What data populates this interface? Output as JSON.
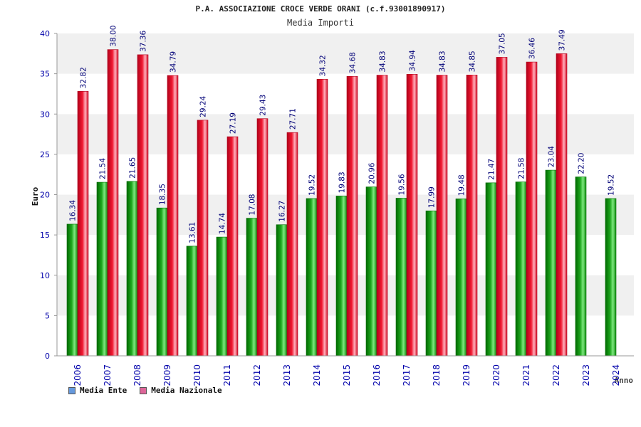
{
  "chart_data": {
    "type": "bar",
    "title": "P.A. ASSOCIAZIONE CROCE VERDE ORANI (c.f.93001890917)",
    "subtitle": "Media Importi",
    "xlabel": "Anno",
    "ylabel": "Euro",
    "ylim": [
      0,
      40
    ],
    "yticks": [
      0,
      5,
      10,
      15,
      20,
      25,
      30,
      35,
      40
    ],
    "categories": [
      "2006",
      "2007",
      "2008",
      "2009",
      "2010",
      "2011",
      "2012",
      "2013",
      "2014",
      "2015",
      "2016",
      "2017",
      "2018",
      "2019",
      "2020",
      "2021",
      "2022",
      "2023",
      "2024"
    ],
    "series": [
      {
        "name": "Media Ente",
        "values": [
          16.34,
          21.54,
          21.65,
          18.35,
          13.61,
          14.74,
          17.08,
          16.27,
          19.52,
          19.83,
          20.96,
          19.56,
          17.99,
          19.48,
          21.47,
          21.58,
          23.04,
          22.2,
          19.52
        ],
        "labels": [
          "16.34",
          "21.54",
          "21.65",
          "18.35",
          "13.61",
          "14.74",
          "17.08",
          "16.27",
          "19.52",
          "19.83",
          "20.96",
          "19.56",
          "17.99",
          "19.48",
          "21.47",
          "21.58",
          "23.04",
          "22.20",
          "19.52"
        ]
      },
      {
        "name": "Media Nazionale",
        "values": [
          32.82,
          38.0,
          37.36,
          34.79,
          29.24,
          27.19,
          29.43,
          27.71,
          34.32,
          34.68,
          34.83,
          34.94,
          34.83,
          34.85,
          37.05,
          36.46,
          37.49,
          null,
          null
        ],
        "labels": [
          "32.82",
          "38.00",
          "37.36",
          "34.79",
          "29.24",
          "27.19",
          "29.43",
          "27.71",
          "34.32",
          "34.68",
          "34.83",
          "34.94",
          "34.83",
          "34.85",
          "37.05",
          "36.46",
          "37.49",
          null,
          null
        ]
      }
    ],
    "grid": true,
    "legend_position": "bottom-left"
  },
  "colors": {
    "ente_dark": "#006a00",
    "ente_mid": "#1fa81f",
    "ente_light": "#7fe87f",
    "naz_dark": "#b0001a",
    "naz_mid": "#f01830",
    "naz_light": "#ffb0bc",
    "legend_ente": "#6699dd",
    "legend_naz": "#dd6699",
    "band": "#f0f0f0",
    "axis_text": "#0000aa",
    "value_text": "#000077"
  }
}
